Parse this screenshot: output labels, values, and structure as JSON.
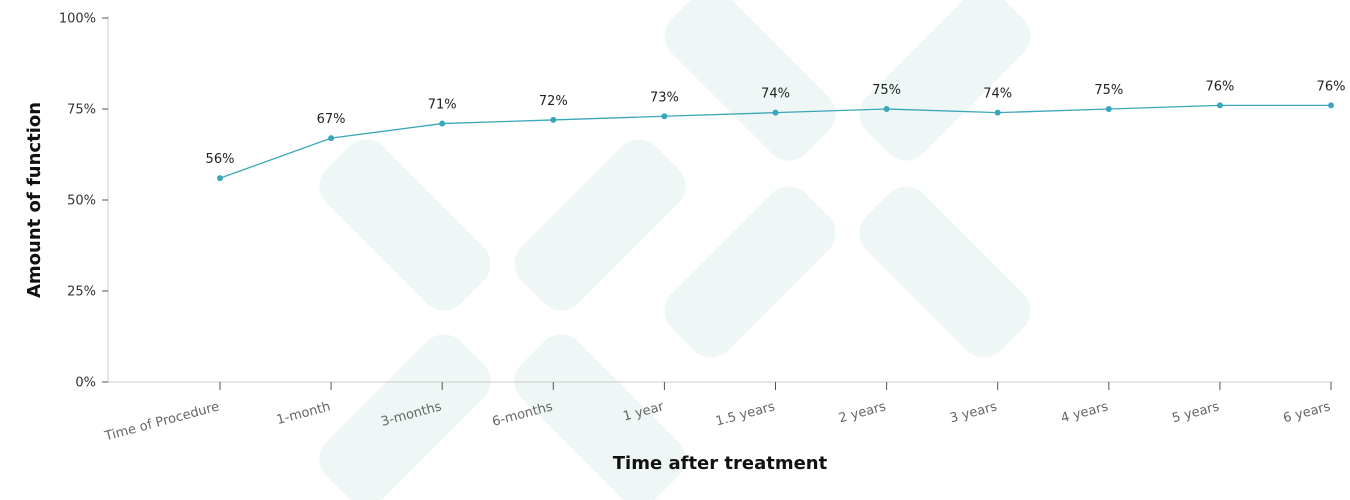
{
  "chart_data": {
    "type": "line",
    "categories": [
      "Time of Procedure",
      "1-month",
      "3-months",
      "6-months",
      "1 year",
      "1.5 years",
      "2 years",
      "3 years",
      "4 years",
      "5 years",
      "6 years"
    ],
    "series": [
      {
        "values": [
          56,
          67,
          71,
          72,
          73,
          74,
          75,
          74,
          75,
          76,
          76
        ]
      }
    ],
    "data_labels": [
      "56%",
      "67%",
      "71%",
      "72%",
      "73%",
      "74%",
      "75%",
      "74%",
      "75%",
      "76%",
      "76%"
    ],
    "y_ticks": [
      0,
      25,
      50,
      75,
      100
    ],
    "y_tick_labels": [
      "0%",
      "25%",
      "50%",
      "75%",
      "100%"
    ],
    "ylim": [
      0,
      100
    ],
    "xlabel": "Time after treatment",
    "ylabel": "Amount of function",
    "grid": false,
    "colors": {
      "line": "#3aa6b9",
      "axis": "#cccccc",
      "watermark": "#e8f4f3"
    }
  }
}
